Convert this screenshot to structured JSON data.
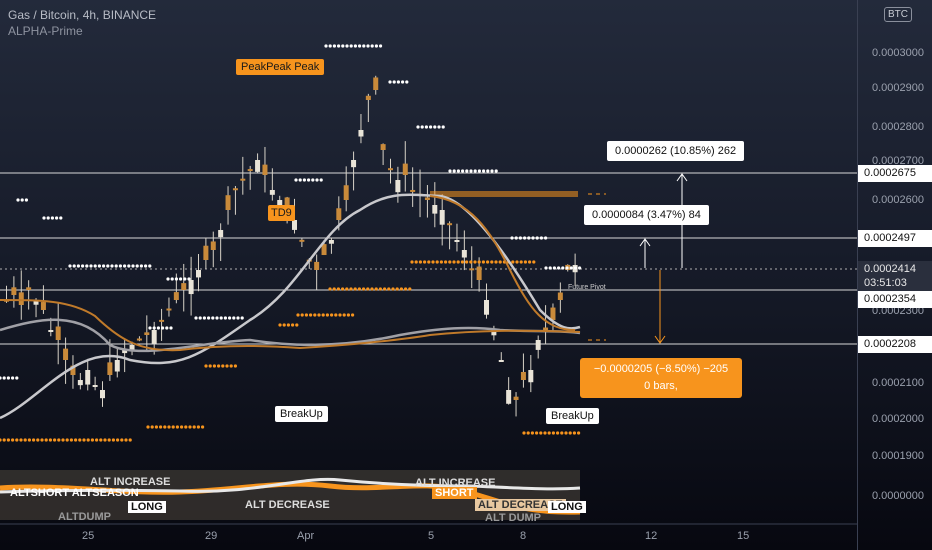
{
  "header": {
    "title": "Gas / Bitcoin, 4h, BINANCE",
    "indicator": "ALPHA-Prime"
  },
  "currency_badge": "BTC",
  "y_axis": {
    "ticks": [
      "0.0003000",
      "0.0002900",
      "0.0002800",
      "0.0002700",
      "0.0002600",
      "0.0002300",
      "0.0002100",
      "0.0002000",
      "0.0001900",
      "0.0000000"
    ],
    "labels": {
      "l1": "0.0002675",
      "l2": "0.0002497",
      "l3": "0.0002414",
      "l3b": "03:51:03",
      "l4": "0.0002354",
      "l5": "0.0002208"
    }
  },
  "x_axis": {
    "ticks": [
      "25",
      "29",
      "Apr",
      "5",
      "8",
      "12",
      "15"
    ]
  },
  "annotations": {
    "peak": "PeakPeak  Peak",
    "td9": "TD9",
    "breakup1": "BreakUp",
    "breakup2": "BreakUp",
    "future_pivot": "Future Pivot"
  },
  "measure": {
    "up_big": "0.0000262 (10.85%) 262",
    "up_small": "0.0000084 (3.47%) 84",
    "down_line1": "−0.0000205 (−8.50%) −205",
    "down_line2": "0 bars,"
  },
  "indicator_panel": {
    "labels": [
      "ALT INCREASE",
      "ALTSHORT ALTSEASON",
      "LONG",
      "ALTDUMP",
      "ALT DECREASE",
      "ALT INCREASE",
      "SHORT",
      "ALT DECREASE",
      "LONG",
      "ALT DUMP"
    ]
  },
  "colors": {
    "accent": "#f7941d",
    "bg": "#1c2131"
  }
}
